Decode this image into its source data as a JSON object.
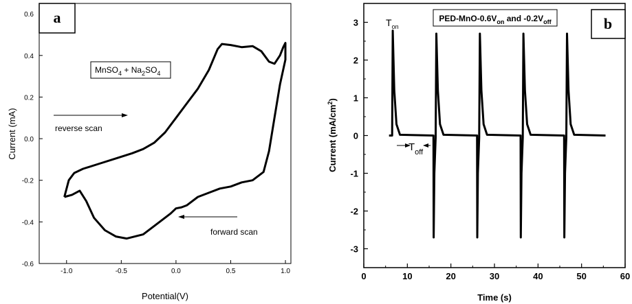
{
  "chart_data": [
    {
      "panel_label": "a",
      "type": "line",
      "xlabel": "Potential(V)",
      "ylabel": "Current (mA)",
      "xlim": [
        -1.25,
        1.05
      ],
      "ylim": [
        -0.6,
        0.65
      ],
      "xticks": [
        "-1.0",
        "-0.5",
        "0.0",
        "0.5",
        "1.0"
      ],
      "yticks": [
        "-0.6",
        "-0.4",
        "-0.2",
        "0.0",
        "0.2",
        "0.4",
        "0.6"
      ],
      "legend_box": {
        "parts": [
          {
            "t": "MnSO",
            "sub": false
          },
          {
            "t": "4",
            "sub": true
          },
          {
            "t": " + Na",
            "sub": false
          },
          {
            "t": "2",
            "sub": true
          },
          {
            "t": "SO",
            "sub": false
          },
          {
            "t": "4",
            "sub": true
          }
        ]
      },
      "annotations": {
        "reverse_scan": "reverse scan",
        "forward_scan": "forward scan"
      },
      "series": [
        {
          "values_upper": [
            [
              -1.02,
              -0.28
            ],
            [
              -0.98,
              -0.2
            ],
            [
              -0.93,
              -0.165
            ],
            [
              -0.85,
              -0.145
            ],
            [
              -0.7,
              -0.12
            ],
            [
              -0.55,
              -0.095
            ],
            [
              -0.4,
              -0.07
            ],
            [
              -0.3,
              -0.05
            ],
            [
              -0.2,
              -0.02
            ],
            [
              -0.1,
              0.03
            ],
            [
              0.0,
              0.1
            ],
            [
              0.1,
              0.17
            ],
            [
              0.2,
              0.24
            ],
            [
              0.3,
              0.33
            ],
            [
              0.38,
              0.43
            ],
            [
              0.42,
              0.455
            ],
            [
              0.5,
              0.45
            ],
            [
              0.6,
              0.44
            ],
            [
              0.7,
              0.445
            ],
            [
              0.78,
              0.42
            ],
            [
              0.85,
              0.37
            ],
            [
              0.9,
              0.36
            ],
            [
              0.95,
              0.4
            ],
            [
              0.98,
              0.44
            ],
            [
              1.0,
              0.46
            ]
          ],
          "values_lower": [
            [
              1.0,
              0.38
            ],
            [
              0.95,
              0.26
            ],
            [
              0.9,
              0.1
            ],
            [
              0.85,
              -0.06
            ],
            [
              0.8,
              -0.16
            ],
            [
              0.7,
              -0.2
            ],
            [
              0.6,
              -0.21
            ],
            [
              0.5,
              -0.23
            ],
            [
              0.4,
              -0.24
            ],
            [
              0.3,
              -0.26
            ],
            [
              0.2,
              -0.28
            ],
            [
              0.1,
              -0.32
            ],
            [
              0.05,
              -0.33
            ],
            [
              0.0,
              -0.335
            ],
            [
              -0.05,
              -0.36
            ],
            [
              -0.15,
              -0.4
            ],
            [
              -0.3,
              -0.46
            ],
            [
              -0.45,
              -0.48
            ],
            [
              -0.55,
              -0.47
            ],
            [
              -0.65,
              -0.44
            ],
            [
              -0.75,
              -0.38
            ],
            [
              -0.82,
              -0.3
            ],
            [
              -0.88,
              -0.25
            ],
            [
              -0.95,
              -0.27
            ],
            [
              -1.02,
              -0.28
            ]
          ]
        }
      ]
    },
    {
      "panel_label": "b",
      "type": "line",
      "title_parts": [
        {
          "t": "PED-MnO-0.6V",
          "sub": false
        },
        {
          "t": "on",
          "sub": true
        },
        {
          "t": " and -0.2V",
          "sub": false
        },
        {
          "t": "off",
          "sub": true
        }
      ],
      "xlabel": "Time (s)",
      "ylabel_parts": [
        {
          "t": "Current (mA/cm",
          "sup": false
        },
        {
          "t": "2",
          "sup": true
        },
        {
          "t": ")",
          "sup": false
        }
      ],
      "xlim": [
        0,
        60
      ],
      "ylim": [
        -3.5,
        3.5
      ],
      "xticks": [
        "0",
        "10",
        "20",
        "30",
        "40",
        "50",
        "60"
      ],
      "yticks": [
        "-3",
        "-2",
        "-1",
        "0",
        "1",
        "2",
        "3"
      ],
      "annotations": {
        "t_on": {
          "main": "T",
          "sub": "on"
        },
        "t_off": {
          "main": "T",
          "sub": "off"
        }
      },
      "series": [
        {
          "t_start": 5.8,
          "t_end": 55.5,
          "on_pulses": [
            6.5,
            16.5,
            26.5,
            36.5,
            46.5
          ],
          "peak_on": [
            2.78,
            2.7,
            2.7,
            2.7,
            2.7
          ],
          "off_pulses": [
            16.0,
            26.0,
            36.0,
            46.0
          ],
          "peak_off": -2.7
        }
      ]
    }
  ]
}
